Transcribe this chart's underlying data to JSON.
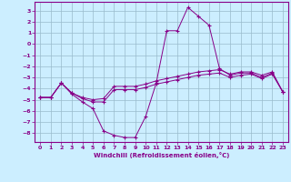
{
  "xlabel": "Windchill (Refroidissement éolien,°C)",
  "bg_color": "#cceeff",
  "grid_color": "#99bbcc",
  "line_color": "#880088",
  "xlim": [
    -0.5,
    23.5
  ],
  "ylim": [
    -8.8,
    3.8
  ],
  "yticks": [
    3,
    2,
    1,
    0,
    -1,
    -2,
    -3,
    -4,
    -5,
    -6,
    -7,
    -8
  ],
  "xticks": [
    0,
    1,
    2,
    3,
    4,
    5,
    6,
    7,
    8,
    9,
    10,
    11,
    12,
    13,
    14,
    15,
    16,
    17,
    18,
    19,
    20,
    21,
    22,
    23
  ],
  "series": [
    {
      "x": [
        0,
        1,
        2,
        3,
        4,
        5,
        6,
        7,
        8,
        9,
        10,
        11,
        12,
        13,
        14,
        15,
        16,
        17,
        18,
        19,
        20,
        21,
        22,
        23
      ],
      "y": [
        -4.8,
        -4.8,
        -3.5,
        -4.5,
        -5.2,
        -5.8,
        -7.8,
        -8.2,
        -8.4,
        -8.4,
        -6.5,
        -3.5,
        1.2,
        1.2,
        3.3,
        2.5,
        1.7,
        -2.2,
        -2.8,
        -2.6,
        -2.6,
        -3.0,
        -2.6,
        -4.3
      ]
    },
    {
      "x": [
        0,
        1,
        2,
        3,
        4,
        5,
        6,
        7,
        8,
        9,
        10,
        11,
        12,
        13,
        14,
        15,
        16,
        17,
        18,
        19,
        20,
        21,
        22,
        23
      ],
      "y": [
        -4.8,
        -4.8,
        -3.5,
        -4.4,
        -4.8,
        -5.0,
        -4.9,
        -3.8,
        -3.8,
        -3.8,
        -3.6,
        -3.3,
        -3.1,
        -2.9,
        -2.7,
        -2.5,
        -2.4,
        -2.3,
        -2.7,
        -2.5,
        -2.5,
        -2.8,
        -2.5,
        -4.3
      ]
    },
    {
      "x": [
        0,
        1,
        2,
        3,
        4,
        5,
        6,
        7,
        8,
        9,
        10,
        11,
        12,
        13,
        14,
        15,
        16,
        17,
        18,
        19,
        20,
        21,
        22,
        23
      ],
      "y": [
        -4.8,
        -4.8,
        -3.5,
        -4.4,
        -4.9,
        -5.2,
        -5.2,
        -4.1,
        -4.1,
        -4.1,
        -3.9,
        -3.6,
        -3.4,
        -3.2,
        -3.0,
        -2.8,
        -2.7,
        -2.6,
        -3.0,
        -2.8,
        -2.7,
        -3.1,
        -2.7,
        -4.3
      ]
    }
  ]
}
